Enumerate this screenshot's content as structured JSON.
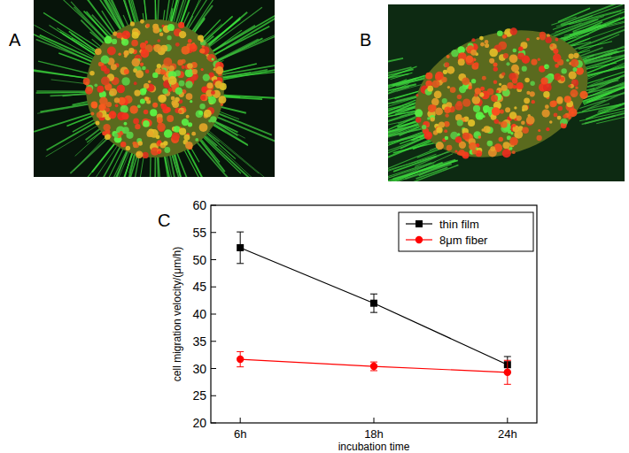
{
  "panel_labels": [
    "A",
    "B",
    "C"
  ],
  "chart_data": {
    "type": "line",
    "x_label": "incubation time",
    "y_label": "cell migration velocity/(μm/h)",
    "categories": [
      "6h",
      "18h",
      "24h"
    ],
    "series": [
      {
        "name": "thin film",
        "color": "#000000",
        "marker": "square",
        "values": [
          52.2,
          42.0,
          30.7
        ],
        "errors": [
          2.9,
          1.7,
          1.5
        ]
      },
      {
        "name": "8μm fiber",
        "color": "#ff0000",
        "marker": "circle",
        "values": [
          31.7,
          30.4,
          29.3
        ],
        "errors": [
          1.4,
          0.8,
          2.2
        ]
      }
    ],
    "ylim": [
      20,
      60
    ],
    "yticks": [
      20,
      25,
      30,
      35,
      40,
      45,
      50,
      55,
      60
    ],
    "grid": false,
    "legend": "upper right"
  }
}
